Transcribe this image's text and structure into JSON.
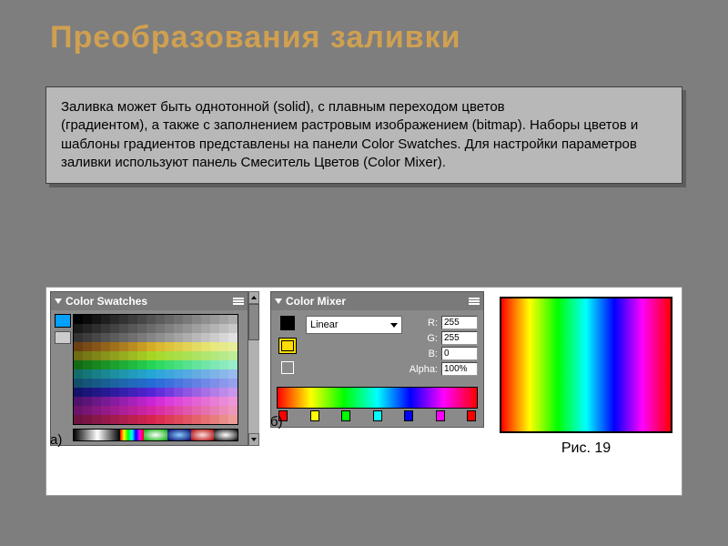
{
  "title": "Преобразования заливки",
  "description": "Заливка  может  быть  однотонной (solid),  с  плавным  переходом  цветов\n(градиентом), а также с заполнением растровым изображением (bitmap). Наборы цветов  и  шаблоны градиентов  представлены  на  панели  Color Swatches.  Для настройки  параметров  заливки  используют  панель  Смеситель  Цветов (Color Mixer).",
  "swatches": {
    "title": "Color Swatches",
    "label": "а)",
    "grid_rows": 12,
    "grid_cols": 18,
    "row_hues": [
      0,
      0,
      0,
      30,
      60,
      120,
      180,
      200,
      240,
      280,
      300,
      330
    ],
    "row_light": [
      0,
      10,
      20,
      50,
      50,
      45,
      45,
      50,
      50,
      50,
      50,
      50
    ],
    "gradient_previews": [
      "linear-gradient(90deg,#000,#fff)",
      "linear-gradient(90deg,#fff,#000)",
      "linear-gradient(90deg,#f00,#ff0,#0f0,#0ff,#00f,#f0f,#f00)",
      "radial-gradient(#fff,#0a0)",
      "radial-gradient(#8cf,#006)",
      "radial-gradient(#fdd,#a00)",
      "radial-gradient(#fff,#888,#000)"
    ]
  },
  "mixer": {
    "title": "Color Mixer",
    "label": "б)",
    "type_label": "Linear",
    "channels": [
      {
        "name": "R:",
        "value": "255"
      },
      {
        "name": "G:",
        "value": "255"
      },
      {
        "name": "B:",
        "value": "0"
      }
    ],
    "alpha": {
      "name": "Alpha:",
      "value": "100%"
    },
    "stops": [
      "#ff0000",
      "#ffff00",
      "#00ff00",
      "#00ffff",
      "#0000ff",
      "#ff00ff",
      "#ff0000"
    ],
    "preview_gradient": "linear-gradient(90deg,#ff0000,#ffff00,#00ff00,#00ffff,#0000ff,#ff00ff,#ff0000)"
  },
  "figure": {
    "caption": "Рис. 19",
    "gradient": "linear-gradient(90deg,#ff0000,#ffff00,#00ff00,#00ffff,#0000ff,#ff00ff,#ff0000)"
  }
}
